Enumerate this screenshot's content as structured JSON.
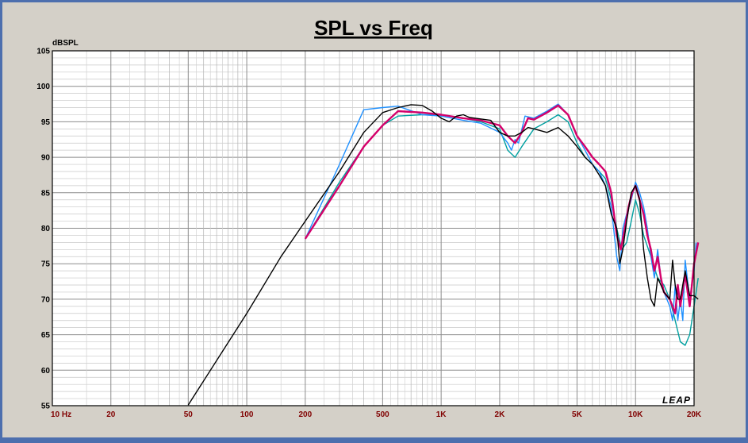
{
  "chart_data": {
    "type": "line",
    "title": "SPL vs Freq",
    "ylabel": "dBSPL",
    "xlabel": "",
    "x_scale": "log",
    "xlim": [
      10,
      20000
    ],
    "ylim": [
      55,
      105
    ],
    "y_ticks": [
      55,
      60,
      65,
      70,
      75,
      80,
      85,
      90,
      95,
      100,
      105
    ],
    "x_ticks": [
      {
        "value": 10,
        "label": "10  Hz"
      },
      {
        "value": 20,
        "label": "20"
      },
      {
        "value": 50,
        "label": "50"
      },
      {
        "value": 100,
        "label": "100"
      },
      {
        "value": 200,
        "label": "200"
      },
      {
        "value": 500,
        "label": "500"
      },
      {
        "value": 1000,
        "label": "1K"
      },
      {
        "value": 2000,
        "label": "2K"
      },
      {
        "value": 5000,
        "label": "5K"
      },
      {
        "value": 10000,
        "label": "10K"
      },
      {
        "value": 20000,
        "label": "20K"
      }
    ],
    "grid": true,
    "watermark": "LEAP",
    "series": [
      {
        "color": "#00a0a0",
        "width": 1.4,
        "points": [
          [
            200,
            78.5
          ],
          [
            300,
            86.5
          ],
          [
            400,
            91.5
          ],
          [
            500,
            94.5
          ],
          [
            600,
            95.8
          ],
          [
            800,
            96
          ],
          [
            1000,
            96
          ],
          [
            1300,
            95.5
          ],
          [
            1600,
            95
          ],
          [
            2000,
            94
          ],
          [
            2200,
            91
          ],
          [
            2400,
            90
          ],
          [
            2600,
            91.5
          ],
          [
            3000,
            94
          ],
          [
            3500,
            95
          ],
          [
            4000,
            96
          ],
          [
            4500,
            95
          ],
          [
            5000,
            92
          ],
          [
            5500,
            90
          ],
          [
            6000,
            89
          ],
          [
            6500,
            88
          ],
          [
            7000,
            87
          ],
          [
            7500,
            84
          ],
          [
            8000,
            80
          ],
          [
            8500,
            77
          ],
          [
            9000,
            78
          ],
          [
            9500,
            81
          ],
          [
            10000,
            84
          ],
          [
            10500,
            82
          ],
          [
            11000,
            79
          ],
          [
            12000,
            76
          ],
          [
            13000,
            73
          ],
          [
            14000,
            72
          ],
          [
            15000,
            70
          ],
          [
            16000,
            67
          ],
          [
            17000,
            64
          ],
          [
            18000,
            63.5
          ],
          [
            19000,
            65
          ],
          [
            20000,
            69
          ],
          [
            21000,
            73
          ]
        ]
      },
      {
        "color": "#1e90ff",
        "width": 1.4,
        "points": [
          [
            200,
            78.5
          ],
          [
            300,
            89
          ],
          [
            400,
            96.7
          ],
          [
            500,
            97
          ],
          [
            600,
            97.2
          ],
          [
            800,
            96
          ],
          [
            1000,
            95.8
          ],
          [
            1300,
            95.2
          ],
          [
            1600,
            94.8
          ],
          [
            2000,
            93.5
          ],
          [
            2200,
            92
          ],
          [
            2300,
            91
          ],
          [
            2400,
            92.5
          ],
          [
            2500,
            92
          ],
          [
            2700,
            95.8
          ],
          [
            3000,
            95.5
          ],
          [
            3500,
            96.5
          ],
          [
            4000,
            97.5
          ],
          [
            4500,
            96
          ],
          [
            5000,
            93
          ],
          [
            5500,
            91
          ],
          [
            6000,
            89
          ],
          [
            6500,
            88
          ],
          [
            7000,
            86
          ],
          [
            7500,
            83
          ],
          [
            8000,
            76
          ],
          [
            8300,
            74
          ],
          [
            8600,
            80
          ],
          [
            9000,
            82
          ],
          [
            9500,
            84
          ],
          [
            10000,
            86.5
          ],
          [
            10500,
            85
          ],
          [
            11000,
            83
          ],
          [
            11500,
            80
          ],
          [
            12000,
            76
          ],
          [
            12500,
            73
          ],
          [
            13000,
            77
          ],
          [
            13500,
            73
          ],
          [
            14000,
            71
          ],
          [
            15000,
            69
          ],
          [
            15500,
            67
          ],
          [
            16000,
            72
          ],
          [
            16500,
            67
          ],
          [
            17000,
            70
          ],
          [
            17500,
            67
          ],
          [
            18000,
            75.5
          ],
          [
            19000,
            70
          ],
          [
            20000,
            74
          ],
          [
            20500,
            78
          ]
        ]
      },
      {
        "color": "#d4006a",
        "width": 2.4,
        "points": [
          [
            200,
            78.5
          ],
          [
            300,
            86
          ],
          [
            400,
            91.5
          ],
          [
            500,
            94.5
          ],
          [
            600,
            96.5
          ],
          [
            800,
            96.3
          ],
          [
            1000,
            96
          ],
          [
            1300,
            95.5
          ],
          [
            1600,
            95.2
          ],
          [
            2000,
            94.5
          ],
          [
            2200,
            93
          ],
          [
            2400,
            92
          ],
          [
            2600,
            93.5
          ],
          [
            2800,
            95.5
          ],
          [
            3000,
            95.3
          ],
          [
            3500,
            96.3
          ],
          [
            4000,
            97.3
          ],
          [
            4500,
            96
          ],
          [
            5000,
            93
          ],
          [
            5500,
            91.5
          ],
          [
            6000,
            90
          ],
          [
            6500,
            89
          ],
          [
            7000,
            88
          ],
          [
            7500,
            85
          ],
          [
            8000,
            79
          ],
          [
            8400,
            77
          ],
          [
            8800,
            80
          ],
          [
            9200,
            83
          ],
          [
            9600,
            85
          ],
          [
            10000,
            86
          ],
          [
            10500,
            84
          ],
          [
            11000,
            82
          ],
          [
            11500,
            79
          ],
          [
            12000,
            77
          ],
          [
            12500,
            74
          ],
          [
            13000,
            76
          ],
          [
            13500,
            73
          ],
          [
            14000,
            71
          ],
          [
            15000,
            70
          ],
          [
            16000,
            68
          ],
          [
            16500,
            72
          ],
          [
            17000,
            69
          ],
          [
            18000,
            73.5
          ],
          [
            19000,
            69
          ],
          [
            20000,
            75
          ],
          [
            21000,
            78
          ]
        ]
      },
      {
        "color": "#000000",
        "width": 1.4,
        "points": [
          [
            50,
            55.1
          ],
          [
            100,
            68
          ],
          [
            150,
            76
          ],
          [
            200,
            81
          ],
          [
            300,
            88
          ],
          [
            400,
            93.5
          ],
          [
            500,
            96.3
          ],
          [
            600,
            97
          ],
          [
            700,
            97.4
          ],
          [
            800,
            97.3
          ],
          [
            900,
            96.5
          ],
          [
            1000,
            95.5
          ],
          [
            1100,
            95
          ],
          [
            1200,
            95.8
          ],
          [
            1300,
            96
          ],
          [
            1400,
            95.6
          ],
          [
            1500,
            95.5
          ],
          [
            1800,
            95.2
          ],
          [
            2000,
            93.5
          ],
          [
            2200,
            93
          ],
          [
            2400,
            93
          ],
          [
            2600,
            93.5
          ],
          [
            2800,
            94.2
          ],
          [
            3000,
            94
          ],
          [
            3500,
            93.5
          ],
          [
            4000,
            94.2
          ],
          [
            4500,
            93
          ],
          [
            5000,
            91.5
          ],
          [
            5500,
            90
          ],
          [
            6000,
            89
          ],
          [
            6500,
            87.5
          ],
          [
            7000,
            86
          ],
          [
            7500,
            82
          ],
          [
            8000,
            80
          ],
          [
            8300,
            75
          ],
          [
            8600,
            77
          ],
          [
            9000,
            81
          ],
          [
            9500,
            85
          ],
          [
            10000,
            86
          ],
          [
            10500,
            84
          ],
          [
            11000,
            77
          ],
          [
            11500,
            73
          ],
          [
            12000,
            70
          ],
          [
            12500,
            69
          ],
          [
            13000,
            73
          ],
          [
            13500,
            72
          ],
          [
            14000,
            71
          ],
          [
            15000,
            70
          ],
          [
            15500,
            75.5
          ],
          [
            16000,
            72
          ],
          [
            16500,
            70
          ],
          [
            17000,
            70
          ],
          [
            18000,
            74
          ],
          [
            19000,
            70.5
          ],
          [
            20000,
            70.5
          ],
          [
            21000,
            70
          ]
        ]
      }
    ]
  }
}
